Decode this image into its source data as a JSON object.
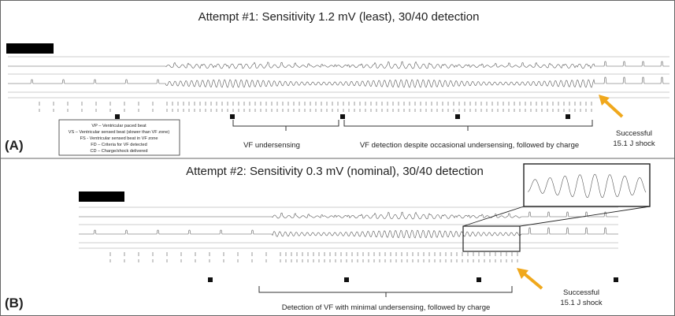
{
  "panel_a": {
    "label": "(A)",
    "title": "Attempt #1: Sensitivity 1.2 mV (least), 30/40 detection",
    "legend": [
      "VP – Ventricular paced beat",
      "VS – Ventricular sensed beat (slower than VF zone)",
      "FS - Ventricular sensed beat in VF zone",
      "FD – Criteria for VF detected",
      "CD – Charge/shock delivered"
    ],
    "annotations": [
      "VF undersensing",
      "VF detection despite occasional undersensing, followed by charge"
    ],
    "shock": [
      "Successful",
      "15.1 J shock"
    ]
  },
  "panel_b": {
    "label": "(B)",
    "title": "Attempt #2: Sensitivity 0.3 mV (nominal), 30/40 detection",
    "annotations": [
      "Detection of VF with minimal undersensing, followed by charge"
    ],
    "shock": [
      "Successful",
      "15.1 J shock"
    ]
  }
}
